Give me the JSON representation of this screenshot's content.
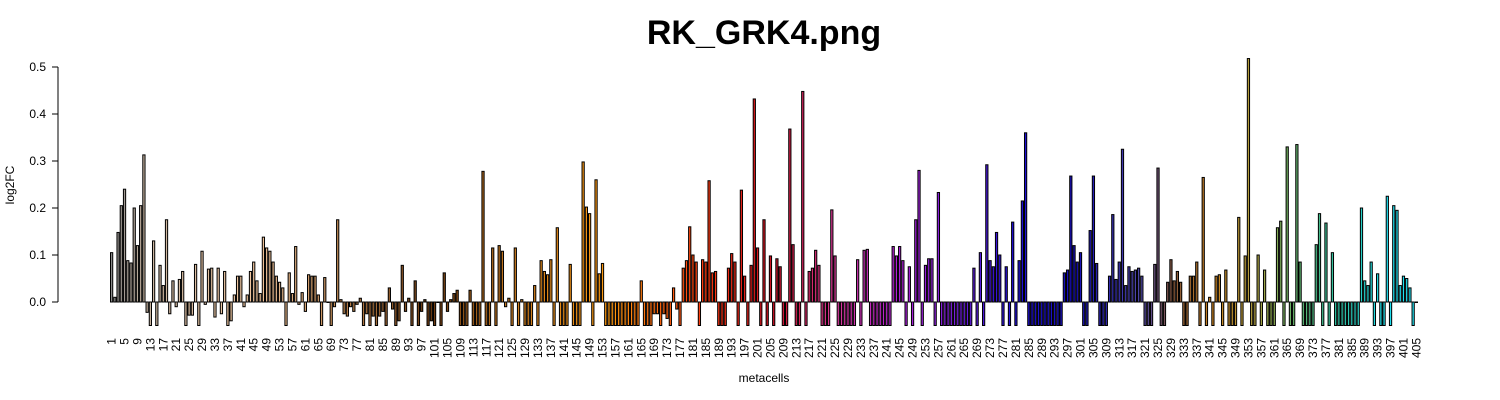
{
  "chart_data": {
    "type": "bar",
    "title": "RK_GRK4.png",
    "xlabel": "metacells",
    "ylabel": "log2FC",
    "ylim": [
      -0.05,
      0.52
    ],
    "yticks": [
      0.0,
      0.1,
      0.2,
      0.3,
      0.4,
      0.5
    ],
    "ytick_labels": [
      "0.0",
      "0.1",
      "0.2",
      "0.3",
      "0.4",
      "0.5"
    ],
    "x_tick_every": 4,
    "color_stops": [
      {
        "at": 1,
        "color": "#8a8a8a"
      },
      {
        "at": 12,
        "color": "#c8b4a0"
      },
      {
        "at": 45,
        "color": "#f3c8a0"
      },
      {
        "at": 75,
        "color": "#b8804a"
      },
      {
        "at": 100,
        "color": "#6b3a12"
      },
      {
        "at": 125,
        "color": "#c87a20"
      },
      {
        "at": 155,
        "color": "#ff9a10"
      },
      {
        "at": 185,
        "color": "#ff3a10"
      },
      {
        "at": 205,
        "color": "#cc1020"
      },
      {
        "at": 225,
        "color": "#d83898"
      },
      {
        "at": 245,
        "color": "#b020d8"
      },
      {
        "at": 262,
        "color": "#7820d8"
      },
      {
        "at": 280,
        "color": "#2010d8"
      },
      {
        "at": 300,
        "color": "#1810b8"
      },
      {
        "at": 320,
        "color": "#5048a8"
      },
      {
        "at": 330,
        "color": "#8a5a3a"
      },
      {
        "at": 342,
        "color": "#c88020"
      },
      {
        "at": 355,
        "color": "#b0a040"
      },
      {
        "at": 365,
        "color": "#70b060"
      },
      {
        "at": 380,
        "color": "#30c0a0"
      },
      {
        "at": 396,
        "color": "#20e0f0"
      }
    ],
    "values": [
      0.105,
      0.01,
      0.148,
      0.205,
      0.24,
      0.088,
      0.083,
      0.2,
      0.12,
      0.205,
      0.313,
      -0.022,
      -0.05,
      0.13,
      -0.05,
      0.078,
      0.035,
      0.175,
      -0.025,
      0.045,
      -0.01,
      0.048,
      0.065,
      -0.05,
      -0.028,
      -0.028,
      0.08,
      -0.05,
      0.108,
      -0.005,
      0.07,
      0.072,
      -0.032,
      0.072,
      -0.025,
      0.065,
      -0.05,
      -0.04,
      0.015,
      0.055,
      0.055,
      -0.01,
      0.015,
      0.065,
      0.085,
      0.045,
      0.018,
      0.138,
      0.115,
      0.108,
      0.085,
      0.055,
      0.042,
      0.03,
      -0.05,
      0.062,
      0.018,
      0.118,
      -0.005,
      0.02,
      -0.02,
      0.058,
      0.055,
      0.055,
      0.015,
      -0.05,
      0.052,
      0.0,
      -0.05,
      -0.01,
      0.175,
      0.005,
      -0.025,
      -0.03,
      -0.01,
      -0.02,
      -0.005,
      0.008,
      -0.05,
      -0.025,
      -0.05,
      -0.03,
      -0.05,
      -0.03,
      -0.02,
      -0.05,
      0.03,
      -0.015,
      -0.05,
      -0.04,
      0.078,
      -0.02,
      0.008,
      -0.05,
      0.045,
      -0.05,
      -0.02,
      0.005,
      -0.05,
      -0.04,
      -0.05,
      0.0,
      -0.05,
      0.062,
      -0.02,
      0.005,
      0.018,
      0.025,
      -0.05,
      -0.05,
      -0.05,
      0.025,
      -0.05,
      -0.05,
      -0.05,
      0.278,
      -0.05,
      -0.05,
      0.115,
      -0.05,
      0.12,
      0.108,
      -0.01,
      0.008,
      -0.05,
      0.115,
      -0.05,
      0.005,
      -0.05,
      -0.05,
      -0.05,
      0.035,
      -0.05,
      0.088,
      0.065,
      0.058,
      0.09,
      -0.05,
      0.158,
      -0.05,
      -0.05,
      -0.05,
      0.08,
      -0.05,
      -0.05,
      -0.05,
      0.298,
      0.202,
      0.188,
      -0.05,
      0.26,
      0.06,
      0.082,
      -0.05,
      -0.05,
      -0.05,
      -0.05,
      -0.05,
      -0.05,
      -0.05,
      -0.05,
      -0.05,
      -0.05,
      -0.05,
      0.045,
      -0.05,
      -0.05,
      -0.05,
      -0.025,
      -0.025,
      -0.05,
      -0.025,
      -0.035,
      -0.05,
      0.03,
      -0.015,
      -0.05,
      0.072,
      0.088,
      0.16,
      0.1,
      0.085,
      -0.05,
      0.09,
      0.085,
      0.258,
      0.062,
      0.065,
      -0.05,
      -0.05,
      -0.05,
      0.072,
      0.103,
      0.085,
      -0.05,
      0.238,
      0.055,
      -0.05,
      0.078,
      0.432,
      0.115,
      -0.05,
      0.175,
      -0.05,
      0.098,
      -0.05,
      0.092,
      0.075,
      -0.05,
      -0.05,
      0.368,
      0.122,
      -0.05,
      -0.05,
      0.448,
      -0.05,
      0.065,
      0.072,
      0.11,
      0.078,
      -0.05,
      -0.05,
      -0.05,
      0.196,
      0.098,
      -0.05,
      -0.05,
      -0.05,
      -0.05,
      -0.05,
      -0.05,
      0.09,
      -0.05,
      0.11,
      0.112,
      -0.05,
      -0.05,
      -0.05,
      -0.05,
      -0.05,
      -0.05,
      -0.05,
      0.118,
      0.098,
      0.118,
      0.088,
      -0.05,
      0.075,
      -0.05,
      0.175,
      0.28,
      -0.05,
      0.078,
      0.092,
      0.092,
      -0.05,
      0.233,
      -0.05,
      -0.05,
      -0.05,
      -0.05,
      -0.05,
      -0.05,
      -0.05,
      -0.05,
      -0.05,
      -0.05,
      0.072,
      -0.05,
      0.105,
      -0.05,
      0.292,
      0.088,
      0.075,
      0.148,
      0.1,
      -0.05,
      0.075,
      -0.05,
      0.17,
      -0.05,
      0.088,
      0.215,
      0.36,
      -0.05,
      -0.05,
      -0.05,
      -0.05,
      -0.05,
      -0.05,
      -0.05,
      -0.05,
      -0.05,
      -0.05,
      -0.05,
      0.062,
      0.068,
      0.268,
      0.12,
      0.085,
      0.105,
      -0.05,
      -0.05,
      0.152,
      0.268,
      0.082,
      -0.05,
      -0.05,
      -0.05,
      0.055,
      0.186,
      0.048,
      0.085,
      0.325,
      0.035,
      0.075,
      0.065,
      0.068,
      0.072,
      0.055,
      -0.05,
      -0.05,
      -0.05,
      0.08,
      0.285,
      -0.05,
      -0.05,
      0.042,
      0.09,
      0.045,
      0.065,
      0.042,
      -0.05,
      -0.05,
      0.055,
      0.055,
      0.085,
      -0.05,
      0.265,
      -0.05,
      0.01,
      -0.05,
      0.055,
      0.058,
      -0.05,
      0.068,
      -0.05,
      -0.05,
      -0.05,
      0.18,
      -0.05,
      0.098,
      0.518,
      -0.05,
      -0.05,
      0.1,
      -0.05,
      0.068,
      -0.05,
      -0.05,
      -0.05,
      0.158,
      0.172,
      -0.05,
      0.33,
      -0.05,
      -0.05,
      0.335,
      0.085,
      -0.05,
      -0.05,
      -0.05,
      -0.05,
      0.122,
      0.188,
      -0.05,
      0.168,
      -0.05,
      0.105,
      -0.05,
      -0.05,
      -0.05,
      -0.05,
      -0.05,
      -0.05,
      -0.05,
      -0.05,
      0.2,
      0.045,
      0.035,
      0.085,
      -0.05,
      0.06,
      -0.05,
      -0.05,
      0.225,
      -0.05,
      0.205,
      0.195,
      0.035,
      0.055,
      0.05,
      0.03,
      -0.05,
      0.0
    ]
  }
}
